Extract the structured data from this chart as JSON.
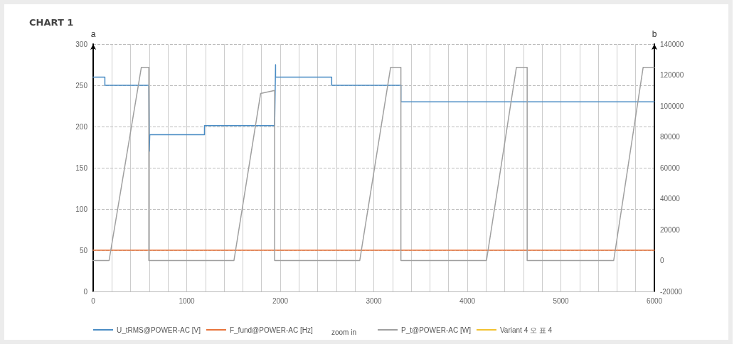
{
  "chart_data": {
    "type": "line",
    "title": "CHART 1",
    "ylabel": "a",
    "y2label": "b",
    "annotations": [
      "zoom in"
    ],
    "series": [
      {
        "name": "U_tRMS@POWER-AC [V]",
        "color": "#4a8cc4",
        "x": [
          0,
          125,
          125,
          595,
          600,
          600,
          605,
          1190,
          1190,
          1940,
          1945,
          1950,
          1950,
          2550,
          2550,
          3290,
          3290,
          6000
        ],
        "values": [
          260,
          260,
          250,
          250,
          250,
          170,
          190,
          190,
          201,
          201,
          201,
          275,
          260,
          260,
          250,
          250,
          230,
          230
        ]
      },
      {
        "name": "F_fund@POWER-AC [Hz]",
        "color": "#e8743b",
        "x": [
          0,
          6000
        ],
        "values": [
          50,
          50
        ]
      },
      {
        "name": "P_t@POWER-AC [W]",
        "color": "#a0a0a0",
        "axis": "y2",
        "x": [
          0,
          170,
          515,
          595,
          595,
          1505,
          1790,
          1940,
          1940,
          2850,
          3180,
          3290,
          3290,
          4205,
          4525,
          4640,
          4640,
          5565,
          5880,
          6000
        ],
        "values": [
          0,
          0,
          125000,
          125000,
          0,
          0,
          108000,
          110000,
          0,
          0,
          125000,
          125000,
          0,
          0,
          125000,
          125000,
          0,
          0,
          125000,
          125000
        ]
      },
      {
        "name": "Variant 4 오 표 4",
        "color": "#f2c230"
      }
    ],
    "xlim": [
      0,
      6000
    ],
    "xticks": [
      0,
      {
        "value": 200,
        "label": null
      },
      {
        "value": 400,
        "label": null
      },
      {
        "value": 600,
        "label": null
      },
      {
        "value": 800,
        "label": null
      },
      1000,
      {
        "value": 1200,
        "label": null
      },
      {
        "value": 1400,
        "label": null
      },
      {
        "value": 1600,
        "label": null
      },
      {
        "value": 1800,
        "label": null
      },
      2000,
      {
        "value": 2200,
        "label": null
      },
      {
        "value": 2400,
        "label": null
      },
      {
        "value": 2600,
        "label": null
      },
      {
        "value": 2800,
        "label": null
      },
      3000,
      {
        "value": 3200,
        "label": null
      },
      {
        "value": 3400,
        "label": null
      },
      {
        "value": 3600,
        "label": null
      },
      {
        "value": 3800,
        "label": null
      },
      4000,
      {
        "value": 4200,
        "label": null
      },
      {
        "value": 4400,
        "label": null
      },
      {
        "value": 4600,
        "label": null
      },
      {
        "value": 4800,
        "label": null
      },
      5000,
      {
        "value": 5200,
        "label": null
      },
      {
        "value": 5400,
        "label": null
      },
      {
        "value": 5600,
        "label": null
      },
      {
        "value": 5800,
        "label": null
      },
      6000
    ],
    "ylim": [
      0,
      300
    ],
    "yticks": [
      0,
      50,
      100,
      150,
      200,
      250,
      300
    ],
    "y2lim": [
      -20000,
      140000
    ],
    "y2ticks": [
      -20000,
      0,
      20000,
      40000,
      60000,
      80000,
      100000,
      120000,
      140000
    ],
    "grid": true,
    "legend": "bottom",
    "marker": "none",
    "line_style": "solid"
  }
}
